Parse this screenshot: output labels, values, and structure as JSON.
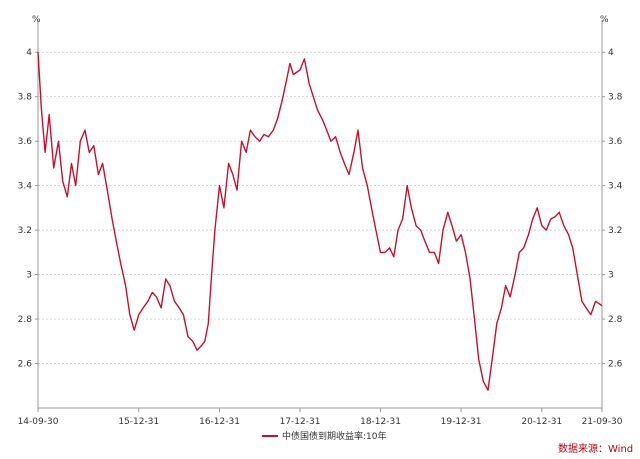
{
  "chart_data": {
    "type": "line",
    "title": "",
    "xlabel": "",
    "ylabel": "%",
    "y_right_label": "%",
    "ylim": [
      2.4,
      4.1
    ],
    "y_ticks": [
      "4",
      "3.8",
      "3.6",
      "3.4",
      "3.2",
      "3",
      "2.8",
      "2.6"
    ],
    "x_ticks": [
      "14-09-30",
      "15-12-31",
      "16-12-31",
      "17-12-31",
      "18-12-31",
      "19-12-31",
      "20-12-31",
      "21-09-30"
    ],
    "xlim": [
      "2014-09-30",
      "2021-09-30"
    ],
    "grid": true,
    "legend_position": "bottom-center",
    "series": [
      {
        "name": "中债国债到期收益率:10年",
        "color": "#c8102e",
        "x": [
          "2014-09-30",
          "2014-10-15",
          "2014-11-01",
          "2014-11-20",
          "2014-12-10",
          "2015-01-01",
          "2015-01-20",
          "2015-02-10",
          "2015-03-01",
          "2015-03-20",
          "2015-04-10",
          "2015-05-01",
          "2015-05-20",
          "2015-06-10",
          "2015-07-01",
          "2015-07-20",
          "2015-08-10",
          "2015-09-01",
          "2015-09-20",
          "2015-10-10",
          "2015-11-01",
          "2015-11-20",
          "2015-12-10",
          "2015-12-31",
          "2016-01-20",
          "2016-02-10",
          "2016-03-01",
          "2016-03-20",
          "2016-04-10",
          "2016-05-01",
          "2016-05-20",
          "2016-06-10",
          "2016-07-01",
          "2016-07-20",
          "2016-08-10",
          "2016-09-01",
          "2016-09-20",
          "2016-10-10",
          "2016-10-25",
          "2016-11-10",
          "2016-11-25",
          "2016-12-10",
          "2016-12-31",
          "2017-01-20",
          "2017-02-10",
          "2017-03-01",
          "2017-03-20",
          "2017-04-10",
          "2017-05-01",
          "2017-05-20",
          "2017-06-10",
          "2017-07-01",
          "2017-07-20",
          "2017-08-10",
          "2017-09-01",
          "2017-09-20",
          "2017-10-10",
          "2017-11-01",
          "2017-11-15",
          "2017-12-01",
          "2017-12-31",
          "2018-01-20",
          "2018-02-10",
          "2018-03-01",
          "2018-03-20",
          "2018-04-10",
          "2018-05-01",
          "2018-05-20",
          "2018-06-10",
          "2018-07-01",
          "2018-07-20",
          "2018-08-10",
          "2018-09-01",
          "2018-09-20",
          "2018-10-10",
          "2018-11-01",
          "2018-11-20",
          "2018-12-10",
          "2018-12-31",
          "2019-01-20",
          "2019-02-10",
          "2019-03-01",
          "2019-03-20",
          "2019-04-10",
          "2019-05-01",
          "2019-05-20",
          "2019-06-10",
          "2019-07-01",
          "2019-07-20",
          "2019-08-10",
          "2019-09-01",
          "2019-09-20",
          "2019-10-10",
          "2019-11-01",
          "2019-11-20",
          "2019-12-10",
          "2019-12-31",
          "2020-01-20",
          "2020-02-10",
          "2020-03-01",
          "2020-03-20",
          "2020-04-10",
          "2020-05-01",
          "2020-05-20",
          "2020-06-10",
          "2020-07-01",
          "2020-07-20",
          "2020-08-10",
          "2020-09-01",
          "2020-09-20",
          "2020-10-10",
          "2020-11-01",
          "2020-11-20",
          "2020-12-10",
          "2020-12-31",
          "2021-01-20",
          "2021-02-10",
          "2021-03-01",
          "2021-03-20",
          "2021-04-10",
          "2021-05-01",
          "2021-05-20",
          "2021-06-10",
          "2021-07-01",
          "2021-07-20",
          "2021-08-10",
          "2021-09-01",
          "2021-09-30"
        ],
        "values": [
          4.0,
          3.75,
          3.55,
          3.72,
          3.48,
          3.6,
          3.42,
          3.35,
          3.5,
          3.4,
          3.6,
          3.65,
          3.55,
          3.58,
          3.45,
          3.5,
          3.38,
          3.25,
          3.15,
          3.05,
          2.95,
          2.82,
          2.75,
          2.82,
          2.85,
          2.88,
          2.92,
          2.9,
          2.85,
          2.98,
          2.95,
          2.88,
          2.85,
          2.82,
          2.72,
          2.7,
          2.66,
          2.68,
          2.7,
          2.78,
          3.0,
          3.2,
          3.4,
          3.3,
          3.5,
          3.45,
          3.38,
          3.6,
          3.55,
          3.65,
          3.62,
          3.6,
          3.63,
          3.62,
          3.65,
          3.7,
          3.78,
          3.88,
          3.95,
          3.9,
          3.92,
          3.97,
          3.86,
          3.8,
          3.74,
          3.7,
          3.65,
          3.6,
          3.62,
          3.55,
          3.5,
          3.45,
          3.55,
          3.65,
          3.48,
          3.4,
          3.3,
          3.2,
          3.1,
          3.1,
          3.12,
          3.08,
          3.2,
          3.25,
          3.4,
          3.3,
          3.22,
          3.2,
          3.15,
          3.1,
          3.1,
          3.05,
          3.2,
          3.28,
          3.22,
          3.15,
          3.18,
          3.1,
          2.98,
          2.8,
          2.62,
          2.52,
          2.48,
          2.62,
          2.78,
          2.85,
          2.95,
          2.9,
          3.0,
          3.1,
          3.12,
          3.18,
          3.25,
          3.3,
          3.22,
          3.2,
          3.25,
          3.26,
          3.28,
          3.22,
          3.18,
          3.12,
          3.0,
          2.88,
          2.85,
          2.82,
          2.88,
          2.86
        ]
      }
    ]
  },
  "legend": {
    "label": "中债国债到期收益率:10年"
  },
  "source": {
    "text": "数据来源：Wind"
  },
  "colors": {
    "line": "#c8102e",
    "grid": "#c8c8c8",
    "axis": "#999999",
    "source": "#c0000f"
  }
}
